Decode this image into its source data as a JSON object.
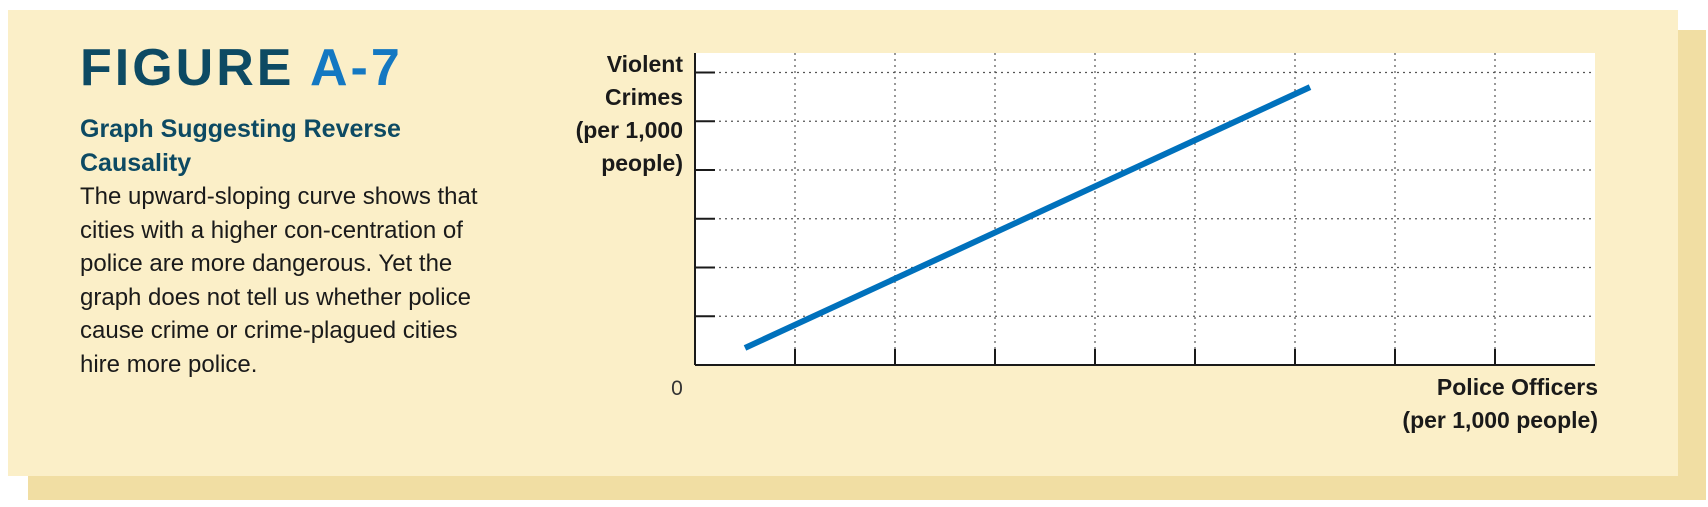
{
  "figure": {
    "label": "FIGURE",
    "number": "A-7",
    "subtitle": "Graph Suggesting Reverse Causality",
    "caption": "The upward-sloping curve shows that cities with a higher con-centration of police are more dangerous. Yet the graph does not tell us whether police cause crime or crime-plagued cities hire more police."
  },
  "colors": {
    "panel_background": "#fbefc8",
    "panel_shadow": "#f1dea3",
    "title_dark": "#0d4a63",
    "title_accent": "#1478c2",
    "line": "#0071bc"
  },
  "chart_data": {
    "type": "line",
    "title": "",
    "xlabel_lines": [
      "Police Officers",
      "(per 1,000 people)"
    ],
    "ylabel_lines": [
      "Violent",
      "Crimes",
      "(per 1,000",
      "people)"
    ],
    "origin_label": "0",
    "xlim": [
      0,
      9
    ],
    "ylim": [
      0,
      6.4
    ],
    "x_ticks": [
      1,
      2,
      3,
      4,
      5,
      6,
      7,
      8
    ],
    "y_ticks": [
      1,
      2,
      3,
      4,
      5,
      6
    ],
    "grid": true,
    "series": [
      {
        "x": [
          0.5,
          6.15
        ],
        "y": [
          0.35,
          5.7
        ]
      }
    ]
  }
}
